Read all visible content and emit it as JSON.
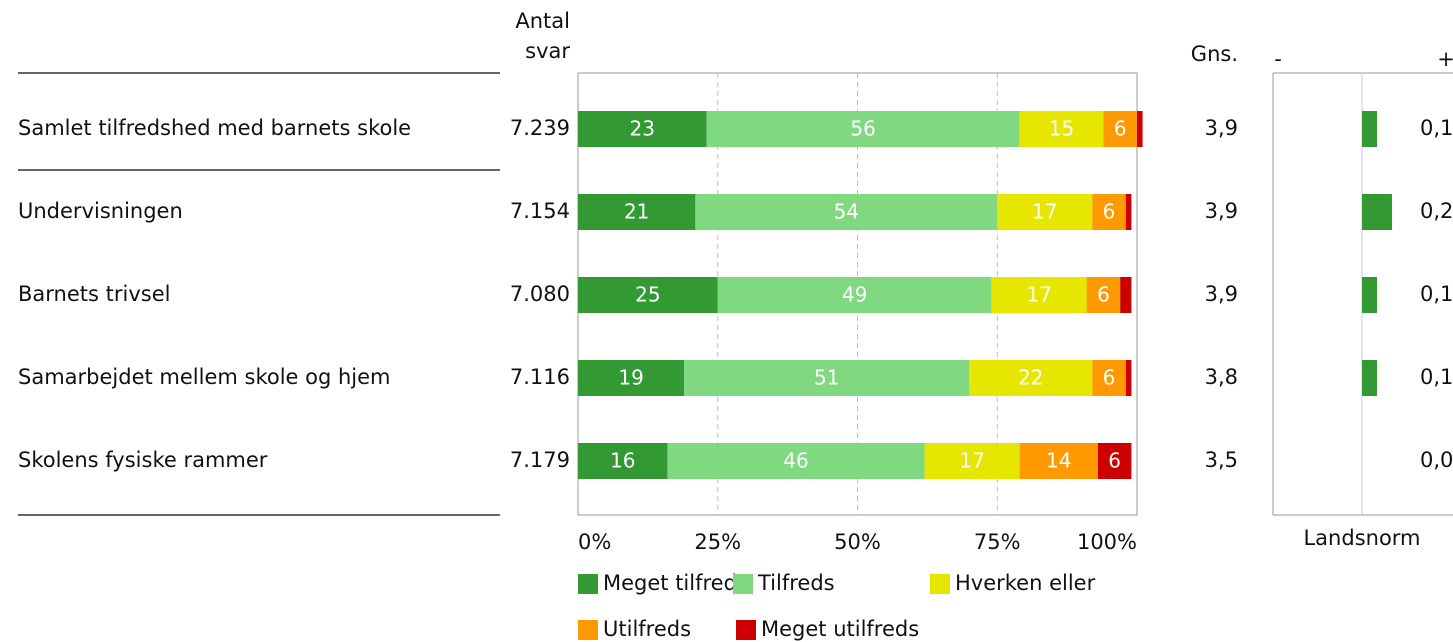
{
  "chart_data": [
    {
      "type": "bar",
      "orientation": "horizontal",
      "stacked": true,
      "categories": [
        "Samlet tilfredshed med barnets skole",
        "Undervisningen",
        "Barnets trivsel",
        "Samarbejdet mellem skole og hjem",
        "Skolens fysiske rammer"
      ],
      "series": [
        {
          "name": "Meget tilfreds",
          "color": "#339933",
          "values": [
            23,
            21,
            25,
            19,
            16
          ]
        },
        {
          "name": "Tilfreds",
          "color": "#80d880",
          "values": [
            56,
            54,
            49,
            51,
            46
          ]
        },
        {
          "name": "Hverken eller",
          "color": "#e6e600",
          "values": [
            15,
            17,
            17,
            22,
            17
          ]
        },
        {
          "name": "Utilfreds",
          "color": "#ff9900",
          "values": [
            6,
            6,
            6,
            6,
            14
          ]
        },
        {
          "name": "Meget utilfreds",
          "color": "#cc0000",
          "values": [
            1,
            1,
            2,
            1,
            6
          ]
        }
      ],
      "xlim": [
        0,
        100
      ],
      "xticks": [
        {
          "value": 0,
          "label": "0%"
        },
        {
          "value": 25,
          "label": "25%"
        },
        {
          "value": 50,
          "label": "50%"
        },
        {
          "value": 75,
          "label": "75%"
        },
        {
          "value": 100,
          "label": "100%"
        }
      ],
      "grid": true,
      "columns": [
        {
          "title": "Antal svar",
          "values": [
            7239,
            7154,
            7080,
            7116,
            7179
          ],
          "value_labels": [
            "7.239",
            "7.154",
            "7.080",
            "7.116",
            "7.179"
          ]
        },
        {
          "title": "Gns.",
          "values": [
            3.9,
            3.9,
            3.9,
            3.8,
            3.5
          ],
          "value_labels": [
            "3,9",
            "3,9",
            "3,9",
            "3,8",
            "3,5"
          ]
        }
      ]
    },
    {
      "type": "bar",
      "orientation": "horizontal",
      "xlabel": "Landsnorm",
      "values": [
        0.1,
        0.2,
        0.1,
        0.1,
        0.0
      ],
      "value_labels": [
        "0,1",
        "0,2",
        "0,1",
        "0,1",
        "0,0"
      ],
      "color": "#339933",
      "xlim": [
        -0.6,
        0.6
      ],
      "xticks": [
        {
          "value": -0.6,
          "label": "-"
        },
        {
          "value": 0.6,
          "label": "+"
        }
      ]
    }
  ]
}
